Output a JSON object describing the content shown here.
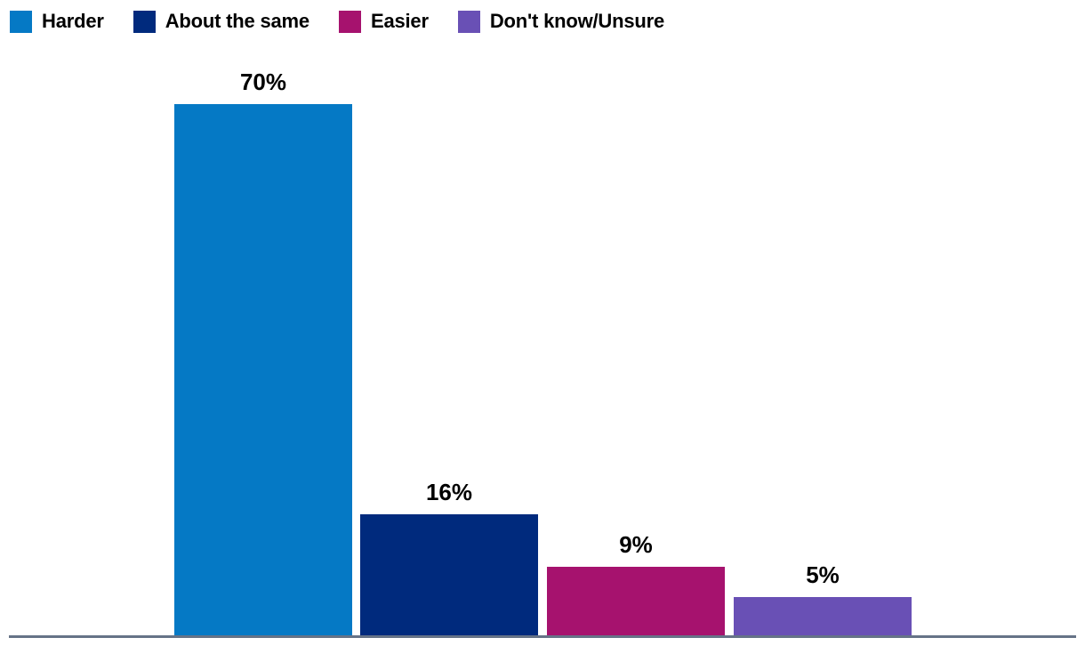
{
  "chart_data": {
    "type": "bar",
    "title": "",
    "xlabel": "",
    "ylabel": "",
    "categories": [
      "Harder",
      "About the same",
      "Easier",
      "Don't know/Unsure"
    ],
    "values": [
      70,
      16,
      9,
      5
    ],
    "data_labels": [
      "70%",
      "16%",
      "9%",
      "5%"
    ],
    "colors": [
      "#0579c5",
      "#002a7d",
      "#a6126e",
      "#6950b5"
    ],
    "ylim": [
      0,
      75
    ],
    "grid": false,
    "axis_ticks_visible": false,
    "legend_position": "top-left",
    "axis_line_color": "#667387",
    "label_color": "#000000",
    "background": "#ffffff"
  }
}
